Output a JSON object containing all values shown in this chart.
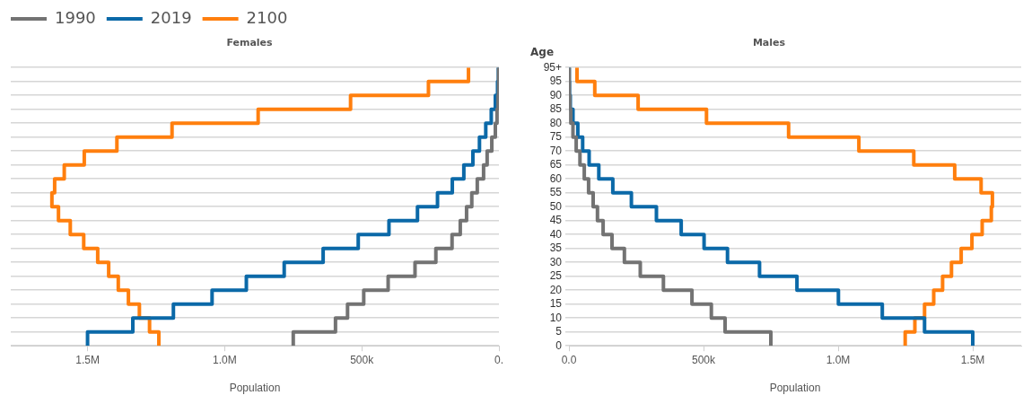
{
  "chart_data": [
    {
      "type": "step",
      "title": "Females",
      "xlabel": "Population",
      "orientation": "horizontal",
      "legend": "top left",
      "grid": "y",
      "tick_labels": "x",
      "x": [
        0,
        5,
        10,
        15,
        20,
        25,
        30,
        35,
        40,
        45,
        50,
        55,
        60,
        65,
        70,
        75,
        80,
        85,
        90,
        95,
        100
      ],
      "xlim": [
        1780000,
        0
      ],
      "xticks": [
        {
          "value": 1500000,
          "label": "1.5M"
        },
        {
          "value": 1000000,
          "label": "1.0M"
        },
        {
          "value": 500000,
          "label": "500k"
        },
        {
          "value": 0,
          "label": "0."
        }
      ],
      "ylim": [
        0,
        100
      ],
      "yticks": [
        0,
        5,
        10,
        15,
        20,
        25,
        30,
        35,
        40,
        45,
        50,
        55,
        60,
        65,
        70,
        75,
        80,
        85,
        90,
        95,
        100
      ],
      "series": [
        {
          "name": "1990",
          "color": "#737373",
          "values": [
            750000,
            596000,
            552000,
            493000,
            404000,
            306000,
            230000,
            171000,
            141000,
            118000,
            99000,
            79000,
            56000,
            43000,
            26000,
            13000,
            7000,
            3000,
            1000,
            1000,
            1000
          ]
        },
        {
          "name": "2019",
          "color": "#0b69a8",
          "values": [
            1500000,
            1335000,
            1187000,
            1046000,
            921000,
            783000,
            641000,
            513000,
            401000,
            297000,
            224000,
            170000,
            128000,
            95000,
            71000,
            48000,
            28000,
            13000,
            5000,
            2000,
            2000
          ]
        },
        {
          "name": "2100",
          "color": "#ff7f0e",
          "values": [
            1240000,
            1274000,
            1311000,
            1351000,
            1388000,
            1423000,
            1463000,
            1514000,
            1563000,
            1606000,
            1630000,
            1620000,
            1585000,
            1512000,
            1393000,
            1192000,
            878000,
            541000,
            257000,
            111000,
            111000
          ]
        }
      ]
    },
    {
      "type": "step",
      "title": "Males",
      "xlabel": "Population",
      "ylabel": "Age",
      "orientation": "horizontal",
      "grid": "y",
      "x": [
        0,
        5,
        10,
        15,
        20,
        25,
        30,
        35,
        40,
        45,
        50,
        55,
        60,
        65,
        70,
        75,
        80,
        85,
        90,
        95,
        100
      ],
      "xlim": [
        0,
        1680000
      ],
      "xticks": [
        {
          "value": 0,
          "label": "0.0"
        },
        {
          "value": 500000,
          "label": "500k"
        },
        {
          "value": 1000000,
          "label": "1.0M"
        },
        {
          "value": 1500000,
          "label": "1.5M"
        }
      ],
      "ylim": [
        0,
        100
      ],
      "yticks": [
        0,
        5,
        10,
        15,
        20,
        25,
        30,
        35,
        40,
        45,
        50,
        55,
        60,
        65,
        70,
        75,
        80,
        85,
        90,
        95,
        {
          "value": 100,
          "label": "95+"
        }
      ],
      "series": [
        {
          "name": "1990",
          "color": "#737373",
          "values": [
            750000,
            580000,
            529000,
            457000,
            351000,
            265000,
            206000,
            160000,
            127000,
            106000,
            90000,
            73000,
            57000,
            41000,
            27000,
            15000,
            7000,
            3000,
            1000,
            1000,
            1000
          ]
        },
        {
          "name": "2019",
          "color": "#0b69a8",
          "values": [
            1500000,
            1321000,
            1164000,
            1001000,
            847000,
            708000,
            589000,
            502000,
            417000,
            325000,
            232000,
            163000,
            111000,
            75000,
            51000,
            33000,
            15000,
            5000,
            2000,
            1000,
            1000
          ]
        },
        {
          "name": "2100",
          "color": "#ff7f0e",
          "values": [
            1249000,
            1285000,
            1321000,
            1355000,
            1388000,
            1421000,
            1457000,
            1497000,
            1535000,
            1569000,
            1573000,
            1531000,
            1433000,
            1281000,
            1077000,
            816000,
            511000,
            257000,
            96000,
            30000,
            30000
          ]
        }
      ]
    }
  ]
}
